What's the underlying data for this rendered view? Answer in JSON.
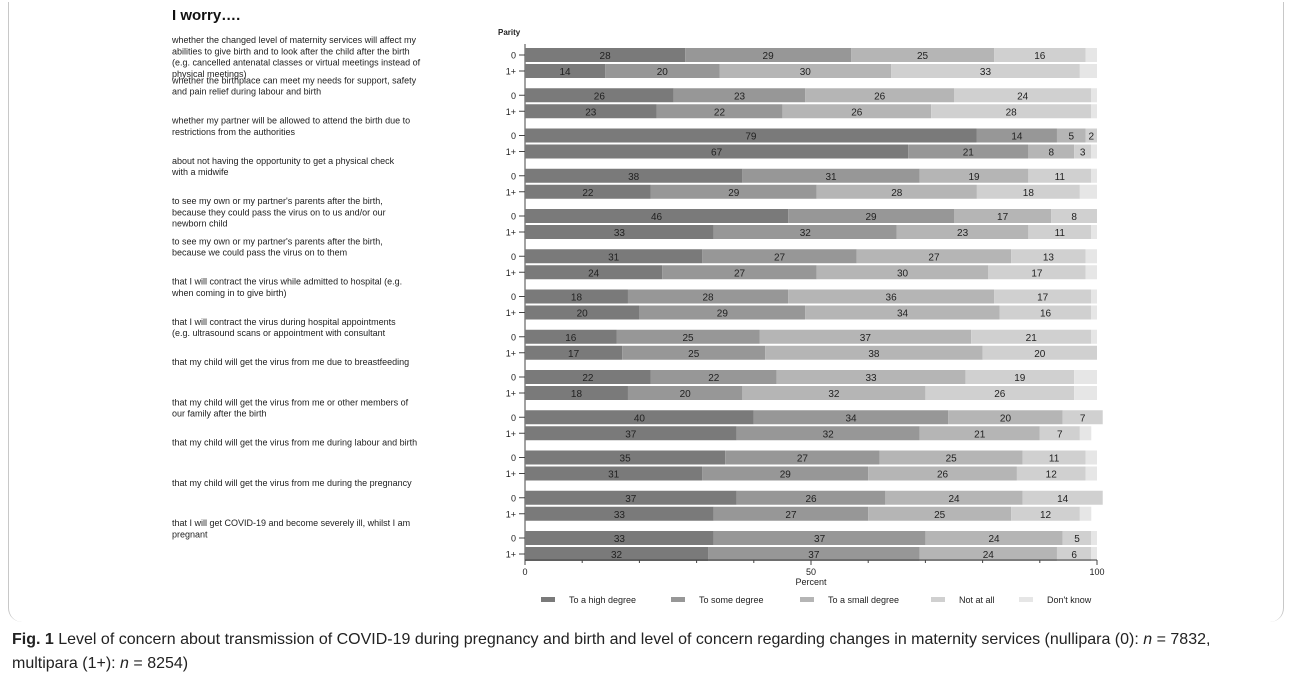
{
  "figure": {
    "caption_label": "Fig. 1",
    "caption_text": "Level of concern about transmission of COVID-19 during pregnancy and birth and level of concern regarding changes in maternity services (nullipara (0): ",
    "n_symbol": "n",
    "n0_value": " = 7832, multipara (1+): ",
    "n1_value": " = 8254)"
  },
  "chart_data": {
    "type": "bar",
    "orientation": "horizontal",
    "stacked": true,
    "title": "I worry….",
    "group_axis_label": "Parity",
    "xlabel": "Percent",
    "xlim": [
      0,
      100
    ],
    "xticks": [
      0,
      50,
      100
    ],
    "legend_position": "bottom",
    "series_names": [
      "To a high degree",
      "To some degree",
      "To a small degree",
      "Not at all",
      "Don't know"
    ],
    "series_colors": [
      "#7a7a7a",
      "#979797",
      "#b5b5b5",
      "#d0d0d0",
      "#e6e6e6"
    ],
    "parity_labels": [
      "0",
      "1+"
    ],
    "items": [
      {
        "label": [
          "whether the changed level of maternity services will affect my",
          "abilities to give birth and to look after the child after the birth",
          "(e.g. cancelled antenatal classes or virtual meetings instead of",
          "physical meetings)"
        ],
        "values": [
          [
            28,
            29,
            25,
            16,
            2
          ],
          [
            14,
            20,
            30,
            33,
            3
          ]
        ]
      },
      {
        "label": [
          "whether the birthplace can meet my needs for support, safety",
          "and pain relief during labour and birth"
        ],
        "values": [
          [
            26,
            23,
            26,
            24,
            1
          ],
          [
            23,
            22,
            26,
            28,
            1
          ]
        ]
      },
      {
        "label": [
          "whether my partner will be allowed to attend the birth due to",
          "restrictions from the authorities"
        ],
        "values": [
          [
            79,
            14,
            5,
            2,
            0
          ],
          [
            67,
            21,
            8,
            3,
            1
          ]
        ]
      },
      {
        "label": [
          "about not having the opportunity to get a physical check",
          "with a midwife"
        ],
        "values": [
          [
            38,
            31,
            19,
            11,
            1
          ],
          [
            22,
            29,
            28,
            18,
            3
          ]
        ]
      },
      {
        "label": [
          "to see my own or my partner's parents after the birth,",
          "because they could pass the virus on to us and/or our",
          "newborn child"
        ],
        "values": [
          [
            46,
            29,
            17,
            8,
            0
          ],
          [
            33,
            32,
            23,
            11,
            1
          ]
        ]
      },
      {
        "label": [
          "to see my own or my partner's parents after the birth,",
          "because we could pass the virus on to them"
        ],
        "values": [
          [
            31,
            27,
            27,
            13,
            2
          ],
          [
            24,
            27,
            30,
            17,
            2
          ]
        ]
      },
      {
        "label": [
          "that I will contract the virus while admitted to hospital (e.g.",
          "when coming in to give birth)"
        ],
        "values": [
          [
            18,
            28,
            36,
            17,
            1
          ],
          [
            20,
            29,
            34,
            16,
            1
          ]
        ]
      },
      {
        "label": [
          "that I will contract the virus during hospital appointments",
          "(e.g. ultrasound scans or appointment with consultant"
        ],
        "values": [
          [
            16,
            25,
            37,
            21,
            1
          ],
          [
            17,
            25,
            38,
            20,
            0
          ]
        ]
      },
      {
        "label": [
          "that my child will get the virus from me due to breastfeeding"
        ],
        "values": [
          [
            22,
            22,
            33,
            19,
            4
          ],
          [
            18,
            20,
            32,
            26,
            4
          ]
        ]
      },
      {
        "label": [
          "that my child will get the virus from me or other members of",
          "our family after the birth"
        ],
        "values": [
          [
            40,
            34,
            20,
            7,
            0
          ],
          [
            37,
            32,
            21,
            7,
            2
          ]
        ]
      },
      {
        "label": [
          "that my child will get the virus from me during labour and birth"
        ],
        "values": [
          [
            35,
            27,
            25,
            11,
            2
          ],
          [
            31,
            29,
            26,
            12,
            2
          ]
        ]
      },
      {
        "label": [
          "that my child will get the virus from me during the pregnancy"
        ],
        "values": [
          [
            37,
            26,
            24,
            14,
            0
          ],
          [
            33,
            27,
            25,
            12,
            2
          ]
        ]
      },
      {
        "label": [
          "that I will get COVID-19 and become severely ill,  whilst I am",
          "pregnant"
        ],
        "values": [
          [
            33,
            37,
            24,
            5,
            1
          ],
          [
            32,
            37,
            24,
            6,
            1
          ]
        ]
      }
    ]
  }
}
